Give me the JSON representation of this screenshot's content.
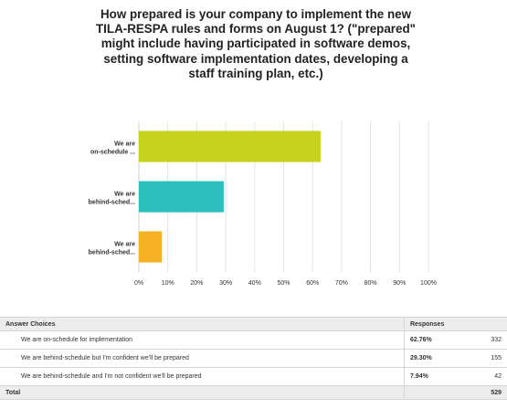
{
  "question": "How prepared is your company to implement the new TILA-RESPA rules and forms on August 1? (\"prepared\" might include having participated in software demos, setting software implementation dates, developing a staff training plan, etc.)",
  "chart_data": {
    "type": "bar",
    "orientation": "horizontal",
    "title": "How prepared is your company to implement the new TILA-RESPA rules and forms on August 1? (\"prepared\" might include having participated in software demos, setting software implementation dates, developing a staff training plan, etc.)",
    "categories": [
      [
        "We are",
        "on-schedule ..."
      ],
      [
        "We are",
        "behind-sched..."
      ],
      [
        "We are",
        "behind-sched..."
      ]
    ],
    "values": [
      62.76,
      29.3,
      7.94
    ],
    "colors": [
      "#c5d11a",
      "#2bbfbd",
      "#f7b125"
    ],
    "xlim": [
      0,
      100
    ],
    "xticks": [
      "0%",
      "10%",
      "20%",
      "30%",
      "40%",
      "50%",
      "60%",
      "70%",
      "80%",
      "90%",
      "100%"
    ],
    "grid": true
  },
  "table": {
    "header_choice": "Answer Choices",
    "header_responses": "Responses",
    "rows": [
      {
        "choice": "We are on-schedule for implementation",
        "percent": "62.76%",
        "count": "332"
      },
      {
        "choice": "We are behind-schedule but I'm confident we'll be prepared",
        "percent": "29.30%",
        "count": "155"
      },
      {
        "choice": "We are behind-schedule and I'm not confident we'll be prepared",
        "percent": "7.94%",
        "count": "42"
      }
    ],
    "total_label": "Total",
    "total_count": "529"
  }
}
